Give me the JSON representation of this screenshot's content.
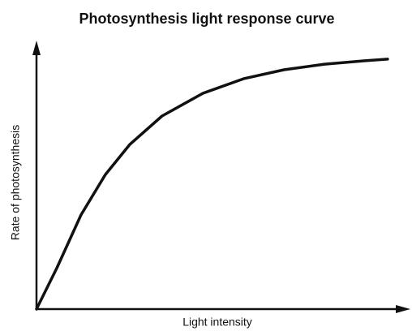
{
  "chart_data": {
    "type": "line",
    "title": "Photosynthesis light response curve",
    "xlabel": "Light intensity",
    "ylabel": "Rate of photosynthesis",
    "x": [
      0,
      5.6,
      12.2,
      18.9,
      25.6,
      34.4,
      45.6,
      56.7,
      67.8,
      78.9,
      90,
      96.2
    ],
    "series": [
      {
        "name": "Rate of photosynthesis",
        "color": "#111111",
        "values": [
          0,
          15.6,
          35.6,
          50.9,
          62.3,
          73.0,
          81.6,
          87.1,
          90.5,
          92.6,
          93.9,
          94.5
        ]
      }
    ],
    "xlim": [
      0,
      100
    ],
    "ylim": [
      0,
      100
    ]
  }
}
